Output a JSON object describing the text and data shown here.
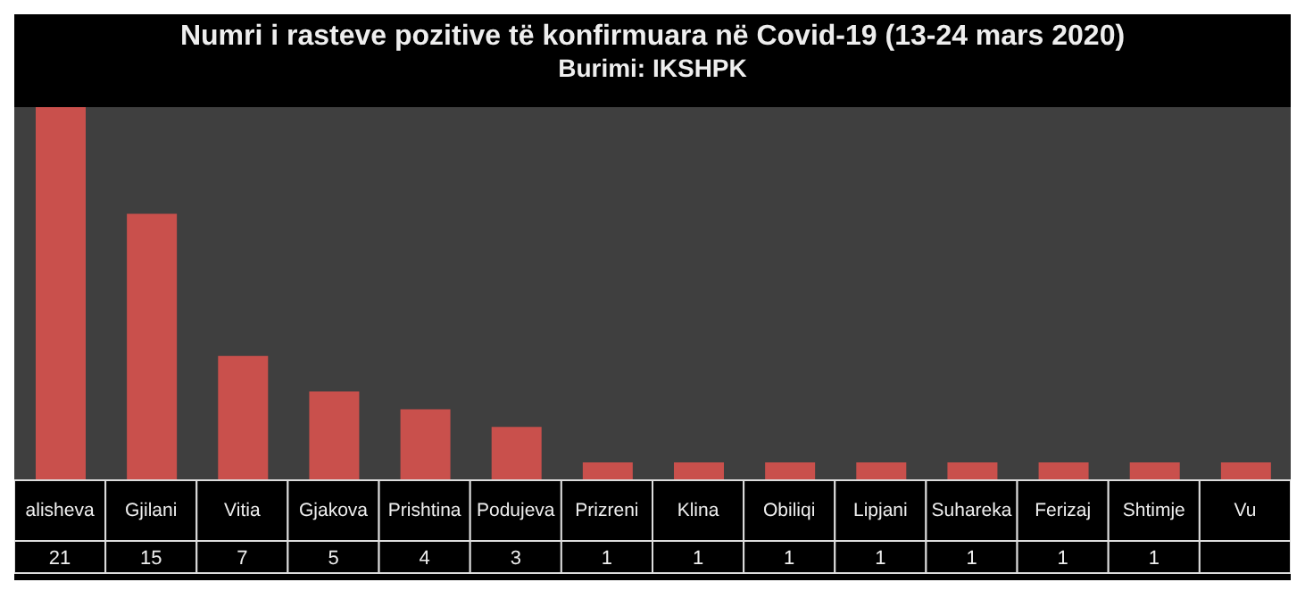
{
  "chart_data": {
    "type": "bar",
    "title": "Numri i rasteve pozitive të konfirmuara  në Covid-19 (13-24 mars 2020)",
    "subtitle": "Burimi: IKSHPK",
    "categories": [
      "alisheva",
      "Gjilani",
      "Vitia",
      "Gjakova",
      "Prishtina",
      "Podujeva",
      "Prizreni",
      "Klina",
      "Obiliqi",
      "Lipjani",
      "Suhareka",
      "Ferizaj",
      "Shtimje",
      "Vu"
    ],
    "values": [
      21,
      15,
      7,
      5,
      4,
      3,
      1,
      1,
      1,
      1,
      1,
      1,
      1,
      1
    ],
    "value_labels": [
      "21",
      "15",
      "7",
      "5",
      "4",
      "3",
      "1",
      "1",
      "1",
      "1",
      "1",
      "1",
      "1",
      null
    ],
    "color": "#c9504c",
    "tick_labels": "x"
  }
}
